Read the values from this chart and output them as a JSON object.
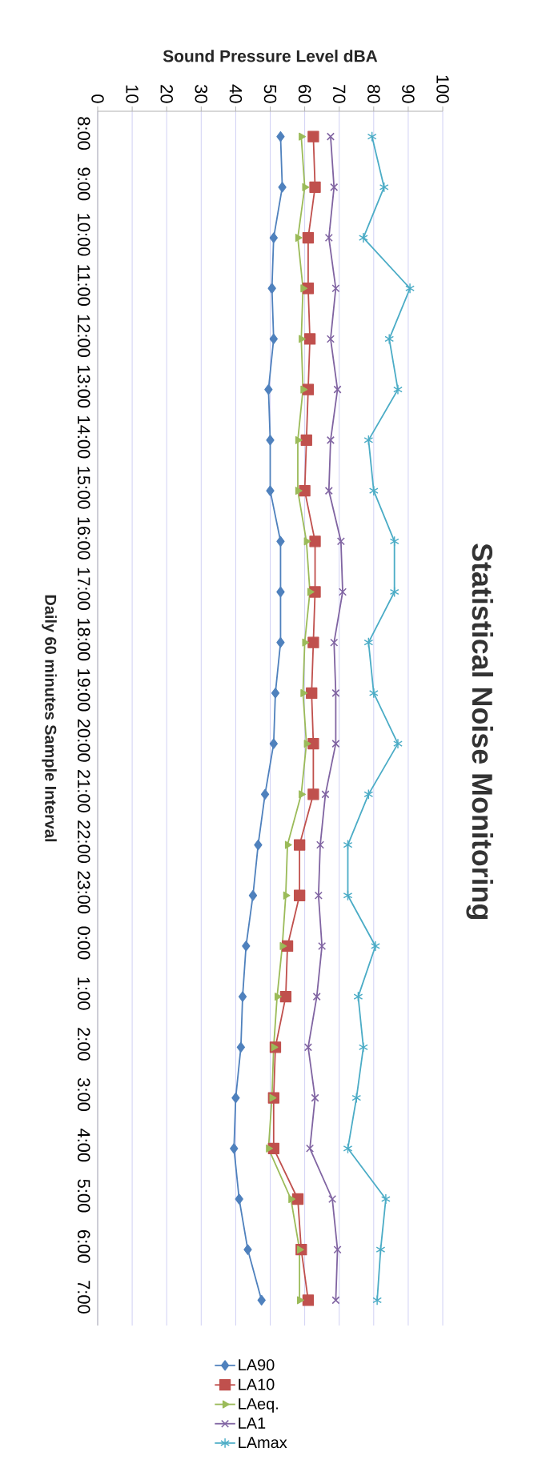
{
  "chart_data": {
    "type": "line",
    "orientation": "horizontal",
    "title": "Statistical Noise Monitoring",
    "xlabel": "Sound Pressure Level dBA",
    "ylabel": "Daily 60 minutes Sample Interval",
    "categories": [
      "8:00",
      "9:00",
      "10:00",
      "11:00",
      "12:00",
      "13:00",
      "14:00",
      "15:00",
      "16:00",
      "17:00",
      "18:00",
      "19:00",
      "20:00",
      "21:00",
      "22:00",
      "23:00",
      "0:00",
      "1:00",
      "2:00",
      "3:00",
      "4:00",
      "5:00",
      "6:00",
      "7:00"
    ],
    "series": [
      {
        "name": "LA90",
        "color": "#4f81bd",
        "marker": "diamond",
        "values": [
          53,
          53.5,
          51,
          50.5,
          51,
          49.5,
          50,
          50,
          53,
          53,
          53,
          51.5,
          51,
          48.5,
          46.5,
          45,
          43,
          42,
          41.5,
          40,
          39.5,
          41,
          43.5,
          47.5
        ]
      },
      {
        "name": "LA10",
        "color": "#c0504d",
        "marker": "square",
        "values": [
          62.5,
          63,
          61,
          61,
          61.5,
          61,
          60.5,
          60,
          63,
          63,
          62.5,
          62,
          62.5,
          62.5,
          58.5,
          58.5,
          55,
          54.5,
          51.5,
          51,
          51,
          58,
          59,
          61
        ]
      },
      {
        "name": "LAeq.",
        "color": "#9bbb59",
        "marker": "triangle",
        "values": [
          59,
          60,
          58,
          59.5,
          59,
          59.5,
          58,
          58,
          60.5,
          61.5,
          60,
          59.5,
          60.5,
          59,
          55,
          54.5,
          53.5,
          52,
          51,
          50.5,
          49.5,
          56,
          58.5,
          58.5
        ]
      },
      {
        "name": "LA1",
        "color": "#8064a2",
        "marker": "cross",
        "values": [
          67.5,
          68.5,
          67,
          69,
          67.5,
          69.5,
          67.5,
          67,
          70.5,
          71,
          68.5,
          69,
          69,
          66,
          64.5,
          64,
          65,
          63.5,
          61,
          63,
          61.5,
          68,
          69.5,
          69
        ]
      },
      {
        "name": "LAmax",
        "color": "#4bacc6",
        "marker": "star",
        "values": [
          79.5,
          83,
          77,
          90.5,
          84.5,
          87,
          78.5,
          80,
          86,
          86,
          78.5,
          80,
          87,
          78.5,
          72.5,
          72.5,
          80.5,
          75.5,
          77,
          75,
          72.5,
          83.5,
          82,
          81
        ]
      }
    ],
    "xlim": [
      0,
      100
    ],
    "xticks": [
      0,
      10,
      20,
      30,
      40,
      50,
      60,
      70,
      80,
      90,
      100
    ],
    "grid": "x",
    "legend": "bottom"
  }
}
